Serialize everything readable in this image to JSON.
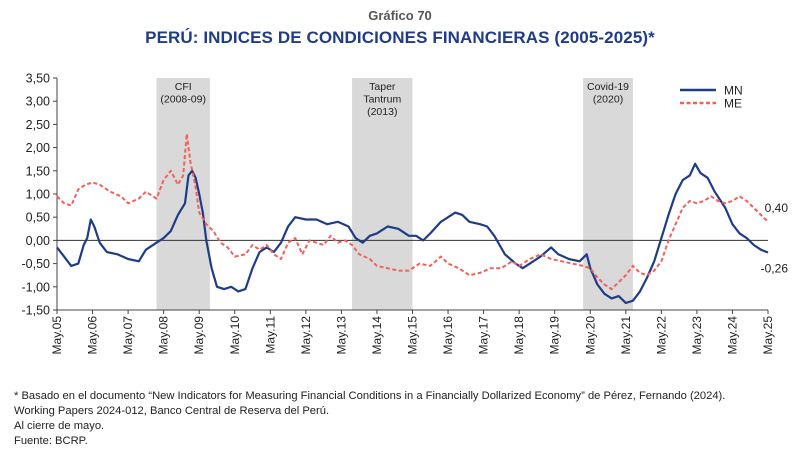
{
  "header": {
    "kicker": "Gráfico 70",
    "title": "PERÚ: INDICES DE CONDICIONES FINANCIERAS (2005-2025)*"
  },
  "chart_data": {
    "type": "line",
    "ylim": [
      -1.5,
      3.5
    ],
    "y_ticks": [
      "3,50",
      "3,00",
      "2,50",
      "2,00",
      "1,50",
      "1,00",
      "0,50",
      "0,00",
      "-0,50",
      "-1,00",
      "-1,50"
    ],
    "x_ticks": [
      "May.05",
      "May.06",
      "May.07",
      "May.08",
      "May.09",
      "May.10",
      "May.11",
      "May.12",
      "May.13",
      "May.14",
      "May.15",
      "May.16",
      "May.17",
      "May.18",
      "May.19",
      "May.20",
      "May.21",
      "May.22",
      "May.23",
      "May.24",
      "May.25"
    ],
    "legend_position": "top-right",
    "grid": false,
    "shaded_periods": [
      {
        "label": [
          "CFI",
          "(2008-09)"
        ],
        "start": 2007.8,
        "end": 2009.3
      },
      {
        "label": [
          "Taper",
          "Tantrum",
          "(2013)"
        ],
        "start": 2013.3,
        "end": 2015.0
      },
      {
        "label": [
          "Covid-19",
          "(2020)"
        ],
        "start": 2019.8,
        "end": 2021.2
      }
    ],
    "series": [
      {
        "name": "MN",
        "color": "#1f3c88",
        "style": "solid",
        "end_label": "-0,26",
        "points": [
          [
            2005.0,
            -0.15
          ],
          [
            2005.2,
            -0.35
          ],
          [
            2005.4,
            -0.55
          ],
          [
            2005.6,
            -0.5
          ],
          [
            2005.75,
            -0.1
          ],
          [
            2005.85,
            0.05
          ],
          [
            2005.95,
            0.45
          ],
          [
            2006.05,
            0.3
          ],
          [
            2006.2,
            -0.05
          ],
          [
            2006.4,
            -0.25
          ],
          [
            2006.7,
            -0.3
          ],
          [
            2007.0,
            -0.4
          ],
          [
            2007.3,
            -0.45
          ],
          [
            2007.5,
            -0.2
          ],
          [
            2007.8,
            -0.05
          ],
          [
            2008.0,
            0.05
          ],
          [
            2008.2,
            0.2
          ],
          [
            2008.4,
            0.55
          ],
          [
            2008.6,
            0.8
          ],
          [
            2008.7,
            1.4
          ],
          [
            2008.8,
            1.5
          ],
          [
            2008.9,
            1.35
          ],
          [
            2009.0,
            1.0
          ],
          [
            2009.1,
            0.6
          ],
          [
            2009.2,
            0.0
          ],
          [
            2009.35,
            -0.6
          ],
          [
            2009.5,
            -1.0
          ],
          [
            2009.7,
            -1.05
          ],
          [
            2009.9,
            -1.0
          ],
          [
            2010.1,
            -1.1
          ],
          [
            2010.3,
            -1.05
          ],
          [
            2010.5,
            -0.6
          ],
          [
            2010.7,
            -0.25
          ],
          [
            2010.9,
            -0.15
          ],
          [
            2011.1,
            -0.25
          ],
          [
            2011.3,
            -0.05
          ],
          [
            2011.5,
            0.3
          ],
          [
            2011.7,
            0.5
          ],
          [
            2012.0,
            0.45
          ],
          [
            2012.3,
            0.45
          ],
          [
            2012.6,
            0.35
          ],
          [
            2012.9,
            0.4
          ],
          [
            2013.2,
            0.3
          ],
          [
            2013.4,
            0.05
          ],
          [
            2013.6,
            -0.05
          ],
          [
            2013.8,
            0.1
          ],
          [
            2014.0,
            0.15
          ],
          [
            2014.3,
            0.3
          ],
          [
            2014.6,
            0.25
          ],
          [
            2014.9,
            0.1
          ],
          [
            2015.1,
            0.1
          ],
          [
            2015.3,
            0.0
          ],
          [
            2015.5,
            0.15
          ],
          [
            2015.8,
            0.4
          ],
          [
            2016.0,
            0.5
          ],
          [
            2016.2,
            0.6
          ],
          [
            2016.4,
            0.55
          ],
          [
            2016.6,
            0.4
          ],
          [
            2016.9,
            0.35
          ],
          [
            2017.1,
            0.3
          ],
          [
            2017.3,
            0.1
          ],
          [
            2017.6,
            -0.3
          ],
          [
            2017.9,
            -0.5
          ],
          [
            2018.1,
            -0.6
          ],
          [
            2018.3,
            -0.5
          ],
          [
            2018.6,
            -0.35
          ],
          [
            2018.9,
            -0.15
          ],
          [
            2019.1,
            -0.3
          ],
          [
            2019.4,
            -0.4
          ],
          [
            2019.7,
            -0.45
          ],
          [
            2019.9,
            -0.3
          ],
          [
            2020.0,
            -0.6
          ],
          [
            2020.2,
            -0.95
          ],
          [
            2020.4,
            -1.15
          ],
          [
            2020.6,
            -1.25
          ],
          [
            2020.8,
            -1.2
          ],
          [
            2021.0,
            -1.35
          ],
          [
            2021.2,
            -1.3
          ],
          [
            2021.4,
            -1.1
          ],
          [
            2021.6,
            -0.8
          ],
          [
            2021.8,
            -0.45
          ],
          [
            2022.0,
            0.05
          ],
          [
            2022.2,
            0.55
          ],
          [
            2022.4,
            1.0
          ],
          [
            2022.6,
            1.3
          ],
          [
            2022.8,
            1.4
          ],
          [
            2022.95,
            1.65
          ],
          [
            2023.1,
            1.45
          ],
          [
            2023.3,
            1.35
          ],
          [
            2023.5,
            1.05
          ],
          [
            2023.8,
            0.7
          ],
          [
            2024.0,
            0.35
          ],
          [
            2024.2,
            0.15
          ],
          [
            2024.4,
            0.05
          ],
          [
            2024.6,
            -0.1
          ],
          [
            2024.8,
            -0.2
          ],
          [
            2025.0,
            -0.26
          ]
        ]
      },
      {
        "name": "ME",
        "color": "#f0625b",
        "style": "dashed",
        "end_label": "0,40",
        "points": [
          [
            2005.0,
            0.95
          ],
          [
            2005.2,
            0.8
          ],
          [
            2005.4,
            0.75
          ],
          [
            2005.6,
            1.1
          ],
          [
            2005.8,
            1.2
          ],
          [
            2006.0,
            1.25
          ],
          [
            2006.2,
            1.2
          ],
          [
            2006.5,
            1.05
          ],
          [
            2006.8,
            0.95
          ],
          [
            2007.0,
            0.8
          ],
          [
            2007.3,
            0.9
          ],
          [
            2007.5,
            1.05
          ],
          [
            2007.8,
            0.9
          ],
          [
            2008.0,
            1.3
          ],
          [
            2008.2,
            1.5
          ],
          [
            2008.4,
            1.2
          ],
          [
            2008.55,
            1.4
          ],
          [
            2008.65,
            2.3
          ],
          [
            2008.75,
            1.7
          ],
          [
            2008.9,
            1.15
          ],
          [
            2009.0,
            0.6
          ],
          [
            2009.2,
            0.35
          ],
          [
            2009.4,
            0.2
          ],
          [
            2009.6,
            -0.05
          ],
          [
            2009.8,
            -0.15
          ],
          [
            2010.0,
            -0.35
          ],
          [
            2010.3,
            -0.3
          ],
          [
            2010.5,
            -0.1
          ],
          [
            2010.7,
            -0.2
          ],
          [
            2010.9,
            -0.1
          ],
          [
            2011.1,
            -0.3
          ],
          [
            2011.3,
            -0.4
          ],
          [
            2011.5,
            -0.05
          ],
          [
            2011.7,
            0.05
          ],
          [
            2011.9,
            -0.3
          ],
          [
            2012.1,
            0.0
          ],
          [
            2012.3,
            -0.05
          ],
          [
            2012.5,
            -0.1
          ],
          [
            2012.7,
            0.1
          ],
          [
            2012.9,
            -0.05
          ],
          [
            2013.1,
            0.0
          ],
          [
            2013.3,
            -0.1
          ],
          [
            2013.5,
            -0.3
          ],
          [
            2013.8,
            -0.4
          ],
          [
            2014.0,
            -0.55
          ],
          [
            2014.3,
            -0.6
          ],
          [
            2014.6,
            -0.65
          ],
          [
            2014.9,
            -0.65
          ],
          [
            2015.2,
            -0.5
          ],
          [
            2015.5,
            -0.55
          ],
          [
            2015.8,
            -0.35
          ],
          [
            2016.0,
            -0.5
          ],
          [
            2016.3,
            -0.6
          ],
          [
            2016.6,
            -0.75
          ],
          [
            2016.9,
            -0.7
          ],
          [
            2017.2,
            -0.6
          ],
          [
            2017.5,
            -0.6
          ],
          [
            2017.8,
            -0.45
          ],
          [
            2018.0,
            -0.55
          ],
          [
            2018.3,
            -0.4
          ],
          [
            2018.6,
            -0.3
          ],
          [
            2018.9,
            -0.4
          ],
          [
            2019.2,
            -0.45
          ],
          [
            2019.5,
            -0.5
          ],
          [
            2019.8,
            -0.55
          ],
          [
            2020.0,
            -0.6
          ],
          [
            2020.2,
            -0.8
          ],
          [
            2020.4,
            -0.95
          ],
          [
            2020.6,
            -1.05
          ],
          [
            2020.8,
            -0.9
          ],
          [
            2021.0,
            -0.75
          ],
          [
            2021.2,
            -0.55
          ],
          [
            2021.4,
            -0.7
          ],
          [
            2021.6,
            -0.75
          ],
          [
            2021.8,
            -0.65
          ],
          [
            2022.0,
            -0.45
          ],
          [
            2022.2,
            0.0
          ],
          [
            2022.4,
            0.35
          ],
          [
            2022.6,
            0.7
          ],
          [
            2022.8,
            0.85
          ],
          [
            2023.0,
            0.8
          ],
          [
            2023.2,
            0.85
          ],
          [
            2023.4,
            0.95
          ],
          [
            2023.6,
            0.85
          ],
          [
            2023.8,
            0.8
          ],
          [
            2024.0,
            0.85
          ],
          [
            2024.2,
            0.95
          ],
          [
            2024.4,
            0.85
          ],
          [
            2024.6,
            0.7
          ],
          [
            2024.8,
            0.55
          ],
          [
            2025.0,
            0.4
          ]
        ]
      }
    ]
  },
  "notes": [
    "* Basado en el documento “New Indicators for Measuring Financial Conditions in a Financially Dollarized Economy” de Pérez, Fernando (2024).",
    "Working Papers 2024-012, Banco Central de Reserva del Perú.",
    "Al cierre de mayo.",
    "Fuente: BCRP."
  ]
}
